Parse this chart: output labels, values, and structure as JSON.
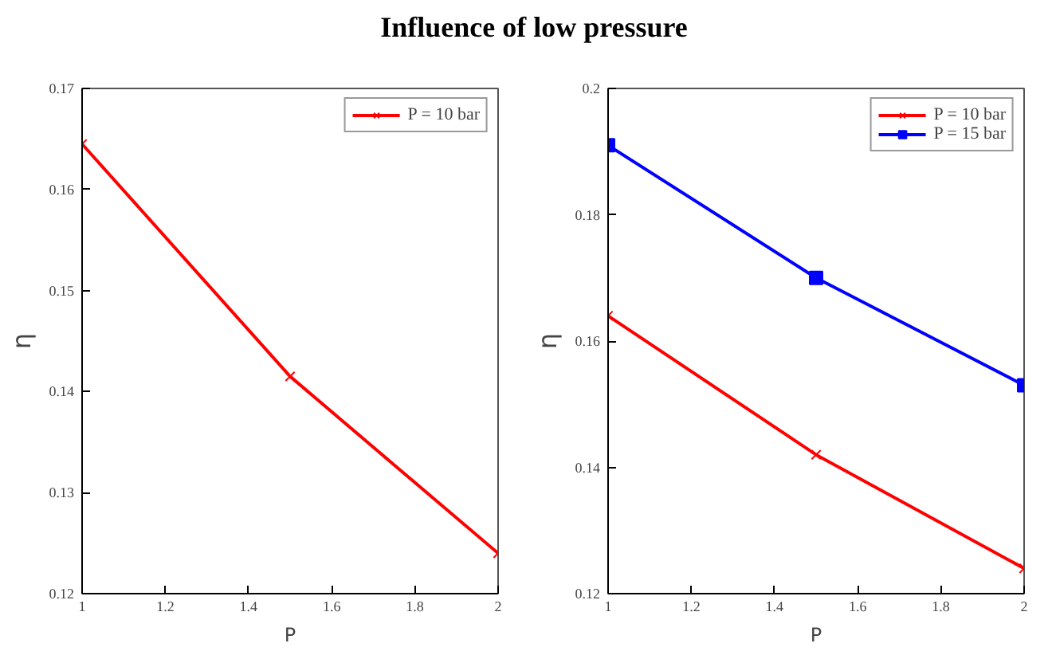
{
  "chart_data": [
    {
      "type": "line",
      "title": "Influence of low pressure",
      "xlabel": "P",
      "ylabel": "η",
      "x": [
        1,
        1.5,
        2
      ],
      "xlim": [
        1,
        2
      ],
      "xticks": [
        1,
        {
          "value": 1.2,
          "label": "1.2"
        },
        {
          "value": 1.4,
          "label": "1.4"
        },
        {
          "value": 1.6,
          "label": "1.6"
        },
        {
          "value": 1.8,
          "label": "1.8"
        },
        2
      ],
      "ylim": [
        0.12,
        0.17
      ],
      "yticks": [
        0.12,
        0.13,
        0.14,
        0.15,
        0.16,
        0.17
      ],
      "grid": false,
      "legend": "top right",
      "series": [
        {
          "name": "P = 10 bar",
          "color": "#ff0000",
          "marker": "cross",
          "values": [
            0.1645,
            0.1415,
            0.124
          ]
        }
      ]
    },
    {
      "type": "line",
      "xlabel": "P",
      "ylabel": "η",
      "x": [
        1,
        1.5,
        2
      ],
      "xlim": [
        1,
        2
      ],
      "xticks": [
        1,
        {
          "value": 1.2,
          "label": "1.2"
        },
        {
          "value": 1.4,
          "label": "1.4"
        },
        {
          "value": 1.6,
          "label": "1.6"
        },
        {
          "value": 1.8,
          "label": "1.8"
        },
        2
      ],
      "ylim": [
        0.12,
        0.2
      ],
      "yticks": [
        0.12,
        0.14,
        0.16,
        0.18,
        0.2
      ],
      "grid": false,
      "legend": "top right",
      "series": [
        {
          "name": "P = 10 bar",
          "color": "#ff0000",
          "marker": "cross",
          "values": [
            0.164,
            0.142,
            0.124
          ]
        },
        {
          "name": "P = 15 bar",
          "color": "#0000ff",
          "marker": "square",
          "values": [
            0.191,
            0.17,
            0.153
          ]
        }
      ]
    }
  ]
}
